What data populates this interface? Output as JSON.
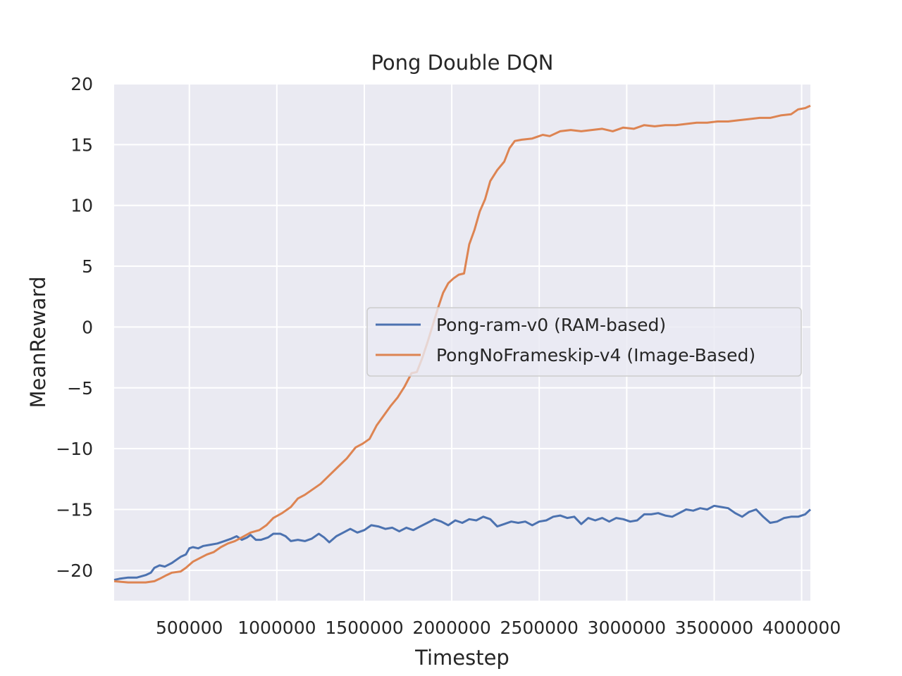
{
  "chart_data": {
    "type": "line",
    "title": "Pong Double DQN",
    "xlabel": "Timestep",
    "ylabel": "MeanReward",
    "xlim": [
      70000,
      4050000
    ],
    "ylim": [
      -22.5,
      20
    ],
    "grid": true,
    "legend_position": "center-right",
    "x_ticks": [
      500000,
      1000000,
      1500000,
      2000000,
      2500000,
      3000000,
      3500000,
      4000000
    ],
    "x_tick_labels": [
      "500000",
      "1000000",
      "1500000",
      "2000000",
      "2500000",
      "3000000",
      "3500000",
      "4000000"
    ],
    "y_ticks": [
      -20,
      -15,
      -10,
      -5,
      0,
      5,
      10,
      15,
      20
    ],
    "y_tick_labels": [
      "−20",
      "−15",
      "−10",
      "−5",
      "0",
      "5",
      "10",
      "15",
      "20"
    ],
    "series": [
      {
        "name": "Pong-ram-v0 (RAM-based)",
        "color": "#4c72b0",
        "points": [
          [
            70000,
            -20.8
          ],
          [
            100000,
            -20.7
          ],
          [
            150000,
            -20.6
          ],
          [
            200000,
            -20.6
          ],
          [
            250000,
            -20.4
          ],
          [
            280000,
            -20.2
          ],
          [
            300000,
            -19.8
          ],
          [
            330000,
            -19.6
          ],
          [
            360000,
            -19.7
          ],
          [
            400000,
            -19.4
          ],
          [
            450000,
            -18.9
          ],
          [
            480000,
            -18.7
          ],
          [
            500000,
            -18.2
          ],
          [
            520000,
            -18.1
          ],
          [
            550000,
            -18.2
          ],
          [
            580000,
            -18.0
          ],
          [
            620000,
            -17.9
          ],
          [
            660000,
            -17.8
          ],
          [
            700000,
            -17.6
          ],
          [
            740000,
            -17.4
          ],
          [
            770000,
            -17.2
          ],
          [
            800000,
            -17.5
          ],
          [
            830000,
            -17.3
          ],
          [
            850000,
            -17.1
          ],
          [
            880000,
            -17.5
          ],
          [
            910000,
            -17.5
          ],
          [
            950000,
            -17.3
          ],
          [
            980000,
            -17.0
          ],
          [
            1020000,
            -17.0
          ],
          [
            1050000,
            -17.2
          ],
          [
            1080000,
            -17.6
          ],
          [
            1120000,
            -17.5
          ],
          [
            1160000,
            -17.6
          ],
          [
            1200000,
            -17.4
          ],
          [
            1240000,
            -17.0
          ],
          [
            1270000,
            -17.3
          ],
          [
            1300000,
            -17.7
          ],
          [
            1340000,
            -17.2
          ],
          [
            1380000,
            -16.9
          ],
          [
            1420000,
            -16.6
          ],
          [
            1460000,
            -16.9
          ],
          [
            1500000,
            -16.7
          ],
          [
            1540000,
            -16.3
          ],
          [
            1580000,
            -16.4
          ],
          [
            1620000,
            -16.6
          ],
          [
            1660000,
            -16.5
          ],
          [
            1700000,
            -16.8
          ],
          [
            1740000,
            -16.5
          ],
          [
            1780000,
            -16.7
          ],
          [
            1820000,
            -16.4
          ],
          [
            1860000,
            -16.1
          ],
          [
            1900000,
            -15.8
          ],
          [
            1940000,
            -16.0
          ],
          [
            1980000,
            -16.3
          ],
          [
            2020000,
            -15.9
          ],
          [
            2060000,
            -16.1
          ],
          [
            2100000,
            -15.8
          ],
          [
            2140000,
            -15.9
          ],
          [
            2180000,
            -15.6
          ],
          [
            2220000,
            -15.8
          ],
          [
            2260000,
            -16.4
          ],
          [
            2300000,
            -16.2
          ],
          [
            2340000,
            -16.0
          ],
          [
            2380000,
            -16.1
          ],
          [
            2420000,
            -16.0
          ],
          [
            2460000,
            -16.3
          ],
          [
            2500000,
            -16.0
          ],
          [
            2540000,
            -15.9
          ],
          [
            2580000,
            -15.6
          ],
          [
            2620000,
            -15.5
          ],
          [
            2660000,
            -15.7
          ],
          [
            2700000,
            -15.6
          ],
          [
            2740000,
            -16.2
          ],
          [
            2780000,
            -15.7
          ],
          [
            2820000,
            -15.9
          ],
          [
            2860000,
            -15.7
          ],
          [
            2900000,
            -16.0
          ],
          [
            2940000,
            -15.7
          ],
          [
            2980000,
            -15.8
          ],
          [
            3020000,
            -16.0
          ],
          [
            3060000,
            -15.9
          ],
          [
            3100000,
            -15.4
          ],
          [
            3140000,
            -15.4
          ],
          [
            3180000,
            -15.3
          ],
          [
            3220000,
            -15.5
          ],
          [
            3260000,
            -15.6
          ],
          [
            3300000,
            -15.3
          ],
          [
            3340000,
            -15.0
          ],
          [
            3380000,
            -15.1
          ],
          [
            3420000,
            -14.9
          ],
          [
            3460000,
            -15.0
          ],
          [
            3500000,
            -14.7
          ],
          [
            3540000,
            -14.8
          ],
          [
            3580000,
            -14.9
          ],
          [
            3620000,
            -15.3
          ],
          [
            3660000,
            -15.6
          ],
          [
            3700000,
            -15.2
          ],
          [
            3740000,
            -15.0
          ],
          [
            3780000,
            -15.6
          ],
          [
            3820000,
            -16.1
          ],
          [
            3860000,
            -16.0
          ],
          [
            3900000,
            -15.7
          ],
          [
            3940000,
            -15.6
          ],
          [
            3980000,
            -15.6
          ],
          [
            4020000,
            -15.4
          ],
          [
            4050000,
            -15.0
          ]
        ]
      },
      {
        "name": "PongNoFrameskip-v4 (Image-Based)",
        "color": "#dd8452",
        "points": [
          [
            70000,
            -20.9
          ],
          [
            150000,
            -21.0
          ],
          [
            250000,
            -21.0
          ],
          [
            300000,
            -20.9
          ],
          [
            330000,
            -20.7
          ],
          [
            370000,
            -20.4
          ],
          [
            400000,
            -20.2
          ],
          [
            450000,
            -20.1
          ],
          [
            480000,
            -19.8
          ],
          [
            520000,
            -19.3
          ],
          [
            560000,
            -19.0
          ],
          [
            600000,
            -18.7
          ],
          [
            640000,
            -18.5
          ],
          [
            680000,
            -18.1
          ],
          [
            720000,
            -17.8
          ],
          [
            760000,
            -17.6
          ],
          [
            800000,
            -17.3
          ],
          [
            850000,
            -16.9
          ],
          [
            900000,
            -16.7
          ],
          [
            940000,
            -16.3
          ],
          [
            980000,
            -15.7
          ],
          [
            1030000,
            -15.3
          ],
          [
            1080000,
            -14.8
          ],
          [
            1120000,
            -14.1
          ],
          [
            1160000,
            -13.8
          ],
          [
            1200000,
            -13.4
          ],
          [
            1250000,
            -12.9
          ],
          [
            1300000,
            -12.2
          ],
          [
            1350000,
            -11.5
          ],
          [
            1400000,
            -10.8
          ],
          [
            1450000,
            -9.9
          ],
          [
            1490000,
            -9.6
          ],
          [
            1530000,
            -9.2
          ],
          [
            1570000,
            -8.1
          ],
          [
            1610000,
            -7.3
          ],
          [
            1650000,
            -6.5
          ],
          [
            1690000,
            -5.8
          ],
          [
            1730000,
            -4.9
          ],
          [
            1770000,
            -3.8
          ],
          [
            1800000,
            -3.7
          ],
          [
            1830000,
            -2.6
          ],
          [
            1860000,
            -1.3
          ],
          [
            1890000,
            0.1
          ],
          [
            1920000,
            1.5
          ],
          [
            1950000,
            2.8
          ],
          [
            1980000,
            3.6
          ],
          [
            2010000,
            4.0
          ],
          [
            2040000,
            4.3
          ],
          [
            2070000,
            4.4
          ],
          [
            2100000,
            6.8
          ],
          [
            2130000,
            8.0
          ],
          [
            2160000,
            9.5
          ],
          [
            2190000,
            10.5
          ],
          [
            2220000,
            12.0
          ],
          [
            2260000,
            12.9
          ],
          [
            2300000,
            13.6
          ],
          [
            2330000,
            14.7
          ],
          [
            2360000,
            15.3
          ],
          [
            2400000,
            15.4
          ],
          [
            2460000,
            15.5
          ],
          [
            2520000,
            15.8
          ],
          [
            2560000,
            15.7
          ],
          [
            2620000,
            16.1
          ],
          [
            2680000,
            16.2
          ],
          [
            2740000,
            16.1
          ],
          [
            2800000,
            16.2
          ],
          [
            2860000,
            16.3
          ],
          [
            2920000,
            16.1
          ],
          [
            2980000,
            16.4
          ],
          [
            3040000,
            16.3
          ],
          [
            3100000,
            16.6
          ],
          [
            3160000,
            16.5
          ],
          [
            3220000,
            16.6
          ],
          [
            3280000,
            16.6
          ],
          [
            3340000,
            16.7
          ],
          [
            3400000,
            16.8
          ],
          [
            3460000,
            16.8
          ],
          [
            3520000,
            16.9
          ],
          [
            3580000,
            16.9
          ],
          [
            3640000,
            17.0
          ],
          [
            3700000,
            17.1
          ],
          [
            3760000,
            17.2
          ],
          [
            3820000,
            17.2
          ],
          [
            3880000,
            17.4
          ],
          [
            3940000,
            17.5
          ],
          [
            3980000,
            17.9
          ],
          [
            4020000,
            18.0
          ],
          [
            4050000,
            18.2
          ]
        ]
      }
    ]
  }
}
